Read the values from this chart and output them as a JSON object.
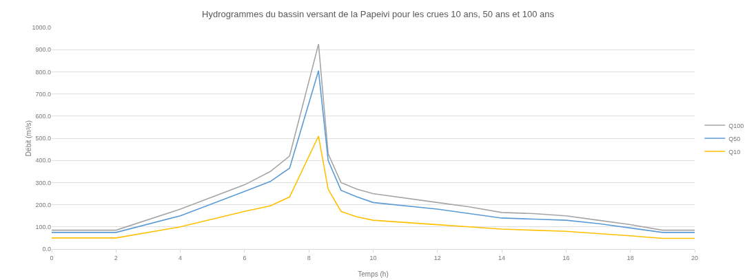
{
  "chart_data": {
    "type": "line",
    "title": "Hydrogrammes du bassin versant de la Papeivi pour les crues 10 ans, 50 ans et 100 ans",
    "xlabel": "Temps (h)",
    "ylabel": "Débit (m³/s)",
    "x": [
      0,
      2,
      4,
      6,
      6.8,
      7.4,
      8.3,
      8.6,
      9,
      9.5,
      10,
      12,
      13,
      14,
      15,
      16,
      17,
      18,
      19,
      20
    ],
    "series": [
      {
        "name": "Q100",
        "color": "#a5a5a5",
        "values": [
          85,
          85,
          180,
          290,
          350,
          420,
          925,
          430,
          300,
          270,
          250,
          210,
          190,
          165,
          160,
          150,
          130,
          110,
          85,
          85
        ]
      },
      {
        "name": "Q50",
        "color": "#5b9bd5",
        "values": [
          75,
          75,
          150,
          260,
          305,
          365,
          805,
          400,
          265,
          235,
          210,
          180,
          160,
          140,
          135,
          130,
          115,
          95,
          75,
          75
        ]
      },
      {
        "name": "Q10",
        "color": "#ffc000",
        "values": [
          50,
          50,
          100,
          170,
          195,
          235,
          510,
          270,
          170,
          145,
          130,
          110,
          100,
          90,
          85,
          80,
          70,
          60,
          48,
          48
        ]
      }
    ],
    "xlim": [
      0,
      20
    ],
    "xticks": [
      0,
      2,
      4,
      6,
      8,
      10,
      12,
      14,
      16,
      18,
      20
    ],
    "ylim": [
      0,
      1000
    ],
    "yticks": [
      {
        "value": 0,
        "label": "0.0"
      },
      {
        "value": 100,
        "label": "100.0"
      },
      {
        "value": 200,
        "label": "200.0"
      },
      {
        "value": 300,
        "label": "300.0"
      },
      {
        "value": 400,
        "label": "400.0"
      },
      {
        "value": 500,
        "label": "500.0"
      },
      {
        "value": 600,
        "label": "600.0"
      },
      {
        "value": 700,
        "label": "700.0"
      },
      {
        "value": 800,
        "label": "800.0"
      },
      {
        "value": 900,
        "label": "900.0"
      },
      {
        "value": 1000,
        "label": "1000.0"
      }
    ],
    "grid": "y",
    "legend": "right",
    "marker": "none",
    "line_style": "solid"
  }
}
